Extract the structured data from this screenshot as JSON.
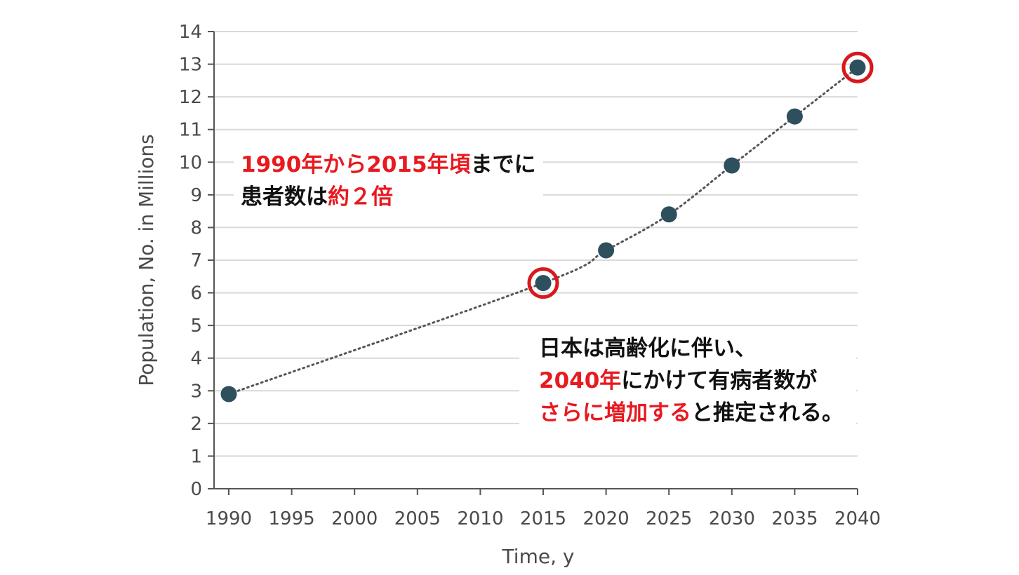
{
  "chart_data": {
    "type": "scatter",
    "x": [
      1990,
      2015,
      2020,
      2025,
      2030,
      2035,
      2040
    ],
    "y": [
      2.9,
      6.3,
      7.3,
      8.4,
      9.9,
      11.4,
      12.9
    ],
    "xticks": [
      "1990",
      "1995",
      "2000",
      "2005",
      "2010",
      "2015",
      "2020",
      "2025",
      "2030",
      "2035",
      "2040"
    ],
    "yticks": [
      "0",
      "1",
      "2",
      "3",
      "4",
      "5",
      "6",
      "7",
      "8",
      "9",
      "10",
      "11",
      "12",
      "13",
      "14"
    ],
    "xlabel": "Time, y",
    "ylabel": "Population, No. in Millions",
    "xlim": [
      1990,
      2040
    ],
    "ylim": [
      0,
      14
    ],
    "grid": "horizontal",
    "trend_line": "dotted",
    "highlighted_points": [
      2015,
      2040
    ],
    "colors": {
      "point": "#2d4f5e",
      "highlight_ring": "#d7191e",
      "grid": "#d9d9d9",
      "trend": "#555555"
    }
  },
  "annotations": {
    "note1": {
      "line1_red": "1990年から2015年頃",
      "line1_black": "までに",
      "line2_black": "患者数は",
      "line2_red": "約２倍"
    },
    "note2": {
      "line1": "日本は高齢化に伴い、",
      "line2_red": "2040年",
      "line2_black": "にかけて有病者数が",
      "line3_red": "さらに増加する",
      "line3_black": "と推定される。"
    },
    "colors": {
      "highlight_text": "#e8191f",
      "text": "#111111"
    }
  }
}
